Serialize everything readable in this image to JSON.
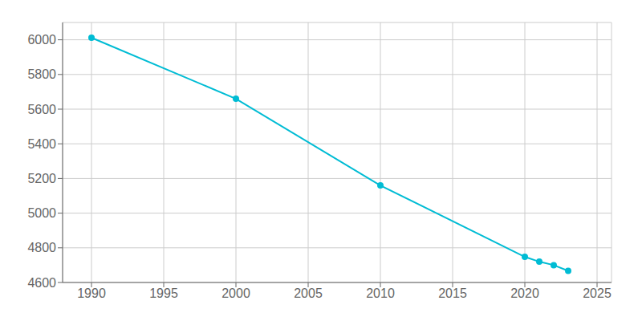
{
  "chart_data": {
    "type": "line",
    "x": [
      1990,
      2000,
      2010,
      2020,
      2021,
      2022,
      2023
    ],
    "values": [
      6012,
      5660,
      5160,
      4748,
      4720,
      4700,
      4667
    ],
    "color": "#00bcd4",
    "marker": "circle",
    "xlim": [
      1988,
      2026
    ],
    "ylim": [
      4600,
      6100
    ],
    "xticks": [
      1990,
      1995,
      2000,
      2005,
      2010,
      2015,
      2020,
      2025
    ],
    "yticks": [
      4600,
      4800,
      5000,
      5200,
      5400,
      5600,
      5800,
      6000
    ],
    "grid": true
  }
}
